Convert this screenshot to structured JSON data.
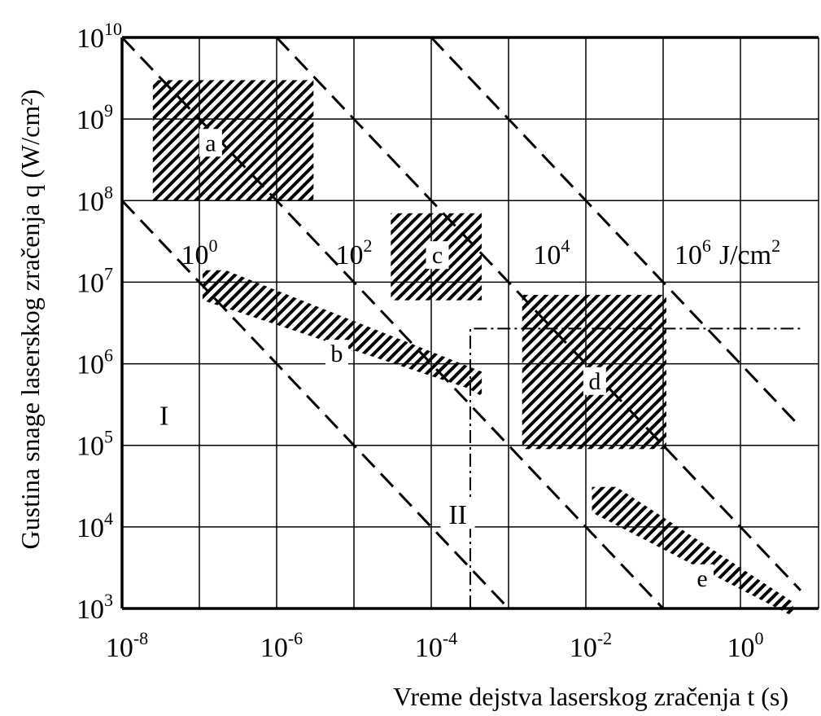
{
  "chart_data": {
    "type": "scatter",
    "title": "",
    "xlabel": "Vreme dejstva  laserskog zračenja   t (s)",
    "ylabel": "Gustina snage  laserskog zračenja  q (W/cm²)",
    "xscale": "log",
    "yscale": "log",
    "xlim": [
      1e-08,
      6.0
    ],
    "ylim": [
      1000.0,
      10000000000.0
    ],
    "grid": true,
    "x_ticks": [
      {
        "value": 1e-08,
        "base": "10",
        "exp": "-8"
      },
      {
        "value": 1e-06,
        "base": "10",
        "exp": "-6"
      },
      {
        "value": 0.0001,
        "base": "10",
        "exp": "-4"
      },
      {
        "value": 0.01,
        "base": "10",
        "exp": "-2"
      },
      {
        "value": 1.0,
        "base": "10",
        "exp": "0"
      }
    ],
    "y_ticks": [
      {
        "value": 1000.0,
        "base": "10",
        "exp": "3"
      },
      {
        "value": 10000.0,
        "base": "10",
        "exp": "4"
      },
      {
        "value": 100000.0,
        "base": "10",
        "exp": "5"
      },
      {
        "value": 1000000.0,
        "base": "10",
        "exp": "6"
      },
      {
        "value": 10000000.0,
        "base": "10",
        "exp": "7"
      },
      {
        "value": 100000000.0,
        "base": "10",
        "exp": "8"
      },
      {
        "value": 1000000000.0,
        "base": "10",
        "exp": "9"
      },
      {
        "value": 10000000000.0,
        "base": "10",
        "exp": "10"
      }
    ],
    "fluence_lines": [
      {
        "fluence": 1.0,
        "base": "10",
        "exp": "0",
        "unit": "",
        "label_x": 1e-07,
        "label_y": 22000000.0
      },
      {
        "fluence": 100.0,
        "base": "10",
        "exp": "2",
        "unit": "",
        "label_x": 1e-05,
        "label_y": 22000000.0
      },
      {
        "fluence": 10000.0,
        "base": "10",
        "exp": "4",
        "unit": "",
        "label_x": 0.0036,
        "label_y": 22000000.0
      },
      {
        "fluence": 1000000.0,
        "base": "10",
        "exp": "6",
        "unit": "J/cm",
        "unit_exp": "2",
        "label_x": 0.14,
        "label_y": 22000000.0
      }
    ],
    "regions": [
      {
        "label": "a",
        "kind": "rect",
        "x": [
          2.5e-08,
          3e-06
        ],
        "y": [
          100000000.0,
          3000000000.0
        ],
        "label_x": 1.4e-07,
        "label_y": 500000000.0
      },
      {
        "label": "c",
        "kind": "rect",
        "x": [
          3e-05,
          0.00045
        ],
        "y": [
          6000000.0,
          70000000.0
        ],
        "label_x": 0.00012,
        "label_y": 21000000.0
      },
      {
        "label": "d",
        "kind": "rect",
        "x": [
          0.0015,
          0.11
        ],
        "y": [
          90000.0,
          7000000.0
        ],
        "label_x": 0.013,
        "label_y": 600000.0
      },
      {
        "label": "b",
        "kind": "band",
        "path": [
          [
            1.1e-07,
            14000000.0
          ],
          [
            2.2e-07,
            14000000.0
          ],
          [
            0.00045,
            800000.0
          ],
          [
            0.00045,
            400000.0
          ],
          [
            0.0003,
            500000.0
          ],
          [
            1.1e-07,
            6000000.0
          ]
        ],
        "label_x": 6e-06,
        "label_y": 1300000.0
      },
      {
        "label": "e",
        "kind": "band",
        "path": [
          [
            0.012,
            31000.0
          ],
          [
            0.025,
            31000.0
          ],
          [
            4.8,
            1200.0
          ],
          [
            4.8,
            800.0
          ],
          [
            0.012,
            15000.0
          ]
        ],
        "label_x": 0.32,
        "label_y": 2300.0
      }
    ],
    "regimes": [
      {
        "label": "I",
        "x": 3.5e-08,
        "y": 230000.0
      },
      {
        "label": "II",
        "x": 0.00022,
        "y": 14000.0
      }
    ],
    "boundary": {
      "style": "dash-dot",
      "x": 0.00032,
      "y": 2700000.0,
      "x_end": 6.0,
      "y_end": 1000.0
    }
  }
}
